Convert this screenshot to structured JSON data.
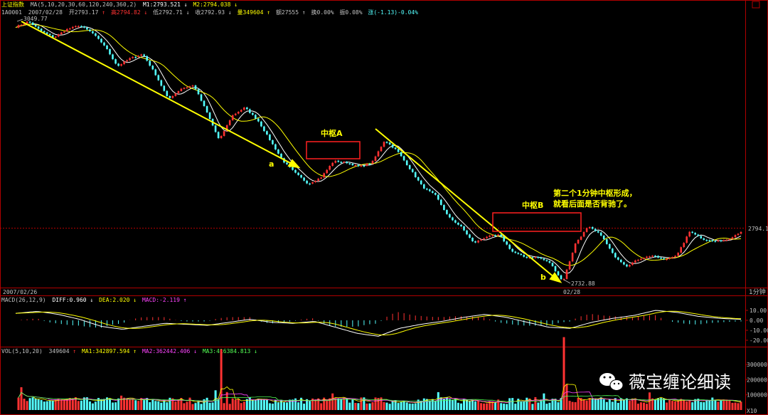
{
  "header": {
    "line1": {
      "index_name": "上证指数",
      "ma_params": "MA(5,10,20,30,60,120,240,360,2)",
      "m1": "M1:2793.521",
      "m1_arrow": "↓",
      "m2": "M2:2794.038",
      "m2_arrow": "↓"
    },
    "line2": {
      "code": "1A0001",
      "date": "2007/02/28",
      "open": "开2793.17",
      "open_arrow": "↑",
      "high": "高2794.82",
      "high_arrow": "↓",
      "low": "低2792.71",
      "low_arrow": "↓",
      "close": "收2792.93",
      "close_arrow": "↓",
      "volume": "量349604",
      "volume_arrow": "↑",
      "amount": "额27555",
      "amount_arrow": "↑",
      "turnover": "换0.00%",
      "amplitude": "振0.08%",
      "change": "涨(-1.13)-0.04%"
    }
  },
  "price_panel": {
    "start_high_label": "3049.77",
    "low_label": "2732.88",
    "right_price_label": "2794.1",
    "annotations": {
      "a": "a",
      "b": "b",
      "zhongshu_a": "中枢A",
      "zhongshu_b": "中枢B",
      "comment_line1": "第二个1分钟中枢形成，",
      "comment_line2": "就看后面是否背驰了。"
    }
  },
  "date_bar": {
    "left_date": "2007/02/26",
    "mid_date": "02/28",
    "period": "1分钟"
  },
  "macd_panel": {
    "label": "MACD(26,12,9)",
    "diff": "DIFF:0.960",
    "diff_arrow": "↓",
    "dea": "DEA:2.020",
    "dea_arrow": "↓",
    "macd": "MACD:-2.119",
    "macd_arrow": "↑",
    "ticks": [
      "10.00",
      "0.00",
      "-10.00",
      "-20.00"
    ]
  },
  "vol_panel": {
    "label": "VOL(5,10,20)",
    "vol": "349604",
    "vol_arrow": "↑",
    "ma1": "MA1:342897.594",
    "ma1_arrow": "↑",
    "ma2": "MA2:362442.406",
    "ma2_arrow": "↓",
    "ma3": "MA3:416384.813",
    "ma3_arrow": "↓",
    "ticks": [
      "300000",
      "200000",
      "100000"
    ],
    "unit": "X10"
  },
  "watermark": "薇宝缠论细读",
  "colors": {
    "up": "#ff3232",
    "down": "#54ffff",
    "ma1": "#ffffff",
    "ma2": "#ffff00",
    "annotation": "#ffff00",
    "box": "#ff2020",
    "grid": "#b00000"
  },
  "chart_data": {
    "type": "line",
    "title": "上证指数",
    "x_axis_dates": [
      "2007/02/26",
      "02/28"
    ],
    "price": {
      "high_label": 3049.77,
      "low_label": 2732.88,
      "last_label": 2794.1,
      "y_range": [
        2732.88,
        3049.77
      ],
      "path_keypoints": [
        3043,
        3049.77,
        3038,
        3030,
        3040,
        3045,
        3036,
        3020,
        2995,
        3005,
        3010,
        2985,
        2955,
        2968,
        2972,
        2940,
        2905,
        2935,
        2945,
        2930,
        2905,
        2880,
        2865,
        2852,
        2860,
        2880,
        2878,
        2873,
        2878,
        2905,
        2892,
        2870,
        2848,
        2838,
        2812,
        2800,
        2780,
        2788,
        2790,
        2770,
        2763,
        2763,
        2756,
        2732.88,
        2780,
        2800,
        2790,
        2765,
        2752,
        2761,
        2765,
        2760,
        2766,
        2795,
        2785,
        2782,
        2785,
        2794.1
      ]
    },
    "macd": {
      "ticks": [
        10,
        0,
        -10,
        -20
      ],
      "diff": 0.96,
      "dea": 2.02,
      "macd": -2.119,
      "diff_keypoints": [
        7,
        9,
        6,
        1,
        -6,
        -9,
        -6,
        -3,
        -4,
        -5,
        -2,
        1,
        -2,
        -3,
        -1,
        -7,
        -13,
        -16,
        -8,
        -4,
        -1,
        3,
        6,
        3,
        -2,
        -7,
        -8,
        -2,
        2,
        5,
        10,
        8,
        4,
        2,
        1
      ]
    },
    "volume": {
      "ticks": [
        300000,
        200000,
        100000
      ],
      "vol": 349604,
      "ma1": 342897.594,
      "ma2": 362442.406,
      "ma3": 416384.813
    }
  }
}
